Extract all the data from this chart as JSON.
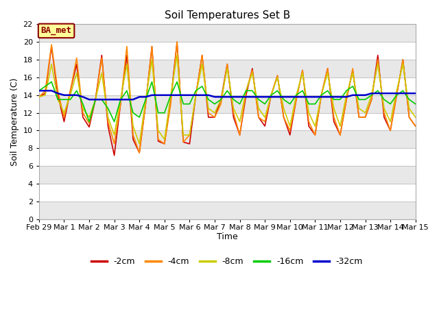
{
  "title": "Soil Temperatures Set B",
  "xlabel": "Time",
  "ylabel": "Soil Temperature (C)",
  "ylim": [
    0,
    22
  ],
  "yticks": [
    0,
    2,
    4,
    6,
    8,
    10,
    12,
    14,
    16,
    18,
    20,
    22
  ],
  "fig_bg_color": "#ffffff",
  "plot_bg_color": "#ffffff",
  "annotation_text": "BA_met",
  "annotation_bg": "#ffff99",
  "annotation_border": "#8b0000",
  "annotation_text_color": "#8b0000",
  "x_labels": [
    "Feb 29",
    "Mar 1",
    "Mar 2",
    "Mar 3",
    "Mar 4",
    "Mar 5",
    "Mar 6",
    "Mar 7",
    "Mar 8",
    "Mar 9",
    "Mar 10",
    "Mar 11",
    "Mar 12",
    "Mar 13",
    "Mar 14",
    "Mar 15"
  ],
  "legend_colors": [
    "#cc0000",
    "#ff8800",
    "#cccc00",
    "#00cc00",
    "#0000cc"
  ],
  "legend_labels": [
    "-2cm",
    "-4cm",
    "-8cm",
    "-16cm",
    "-32cm"
  ],
  "grid_stripe_color": "#d8d8d8",
  "grid_line_color": "#c8c8c8",
  "series": {
    "depth_2cm": {
      "color": "#cc0000",
      "lw": 1.2
    },
    "depth_4cm": {
      "color": "#ff8800",
      "lw": 1.2
    },
    "depth_8cm": {
      "color": "#cccc00",
      "lw": 1.2
    },
    "depth_16cm": {
      "color": "#00cc00",
      "lw": 1.2
    },
    "depth_32cm": {
      "color": "#0000cc",
      "lw": 1.8
    }
  },
  "x_2cm": [
    0,
    0.25,
    0.5,
    0.75,
    1.0,
    1.25,
    1.5,
    1.75,
    2.0,
    2.25,
    2.5,
    2.75,
    3.0,
    3.25,
    3.5,
    3.75,
    4.0,
    4.25,
    4.5,
    4.75,
    5.0,
    5.25,
    5.5,
    5.75,
    6.0,
    6.25,
    6.5,
    6.75,
    7.0,
    7.25,
    7.5,
    7.75,
    8.0,
    8.25,
    8.5,
    8.75,
    9.0,
    9.25,
    9.5,
    9.75,
    10.0,
    10.25,
    10.5,
    10.75,
    11.0,
    11.25,
    11.5,
    11.75,
    12.0,
    12.25,
    12.5,
    12.75,
    13.0,
    13.25,
    13.5,
    13.75,
    14.0,
    14.25,
    14.5,
    14.75,
    15.0
  ],
  "y_2cm": [
    13.8,
    14.2,
    19.5,
    14.0,
    11.0,
    14.5,
    17.5,
    11.5,
    10.4,
    13.5,
    18.5,
    10.5,
    7.2,
    13.0,
    18.5,
    9.0,
    7.5,
    13.0,
    19.5,
    8.8,
    8.5,
    13.5,
    20.0,
    8.7,
    8.5,
    14.0,
    18.5,
    11.5,
    11.5,
    13.5,
    17.5,
    11.5,
    9.5,
    14.0,
    17.0,
    11.5,
    10.5,
    14.0,
    16.2,
    11.5,
    9.5,
    13.5,
    16.8,
    10.5,
    9.5,
    14.0,
    17.0,
    11.0,
    9.5,
    13.5,
    16.8,
    11.5,
    11.5,
    13.5,
    18.5,
    11.5,
    10.0,
    14.0,
    18.0,
    11.5,
    10.5
  ],
  "x_4cm": [
    0,
    0.25,
    0.5,
    0.75,
    1.0,
    1.25,
    1.5,
    1.75,
    2.0,
    2.25,
    2.5,
    2.75,
    3.0,
    3.25,
    3.5,
    3.75,
    4.0,
    4.25,
    4.5,
    4.75,
    5.0,
    5.25,
    5.5,
    5.75,
    6.0,
    6.25,
    6.5,
    6.75,
    7.0,
    7.25,
    7.5,
    7.75,
    8.0,
    8.25,
    8.5,
    8.75,
    9.0,
    9.25,
    9.5,
    9.75,
    10.0,
    10.25,
    10.5,
    10.75,
    11.0,
    11.25,
    11.5,
    11.75,
    12.0,
    12.25,
    12.5,
    12.75,
    13.0,
    13.25,
    13.5,
    13.75,
    14.0,
    14.25,
    14.5,
    14.75,
    15.0
  ],
  "y_4cm": [
    13.8,
    14.5,
    19.7,
    14.5,
    11.5,
    14.5,
    18.2,
    12.0,
    10.8,
    13.5,
    18.2,
    11.0,
    8.5,
    13.0,
    19.5,
    9.5,
    7.5,
    13.0,
    19.5,
    9.0,
    8.5,
    13.0,
    20.0,
    8.7,
    9.5,
    14.0,
    18.5,
    12.0,
    11.5,
    13.0,
    17.5,
    12.0,
    9.5,
    14.5,
    16.8,
    11.5,
    11.0,
    14.0,
    16.2,
    11.5,
    10.0,
    13.5,
    16.8,
    11.0,
    9.5,
    14.0,
    17.0,
    11.5,
    9.5,
    13.5,
    17.0,
    11.5,
    11.5,
    13.5,
    18.0,
    12.0,
    10.0,
    14.0,
    18.0,
    11.5,
    10.5
  ],
  "x_8cm": [
    0,
    0.25,
    0.5,
    0.75,
    1.0,
    1.25,
    1.5,
    1.75,
    2.0,
    2.25,
    2.5,
    2.75,
    3.0,
    3.25,
    3.5,
    3.75,
    4.0,
    4.25,
    4.5,
    4.75,
    5.0,
    5.25,
    5.5,
    5.75,
    6.0,
    6.25,
    6.5,
    6.75,
    7.0,
    7.25,
    7.5,
    7.75,
    8.0,
    8.25,
    8.5,
    8.75,
    9.0,
    9.25,
    9.5,
    9.75,
    10.0,
    10.25,
    10.5,
    10.75,
    11.0,
    11.25,
    11.5,
    11.75,
    12.0,
    12.25,
    12.5,
    12.75,
    13.0,
    13.25,
    13.5,
    13.75,
    14.0,
    14.25,
    14.5,
    14.75,
    15.0
  ],
  "y_8cm": [
    13.8,
    14.0,
    17.5,
    13.5,
    12.0,
    14.0,
    16.5,
    12.5,
    11.5,
    13.5,
    16.5,
    11.5,
    9.5,
    13.5,
    17.5,
    10.5,
    8.5,
    13.5,
    18.0,
    10.0,
    9.0,
    14.0,
    18.5,
    9.5,
    9.5,
    14.0,
    17.5,
    12.5,
    12.0,
    13.5,
    17.0,
    12.5,
    11.0,
    14.5,
    16.5,
    12.5,
    11.5,
    14.0,
    16.0,
    12.5,
    10.5,
    14.0,
    16.5,
    12.0,
    10.5,
    14.0,
    16.5,
    12.5,
    10.5,
    14.0,
    16.5,
    12.5,
    12.0,
    14.0,
    17.5,
    12.5,
    11.0,
    14.5,
    17.5,
    12.5,
    11.5
  ],
  "x_16cm": [
    0,
    0.25,
    0.5,
    0.75,
    1.0,
    1.25,
    1.5,
    1.75,
    2.0,
    2.25,
    2.5,
    2.75,
    3.0,
    3.25,
    3.5,
    3.75,
    4.0,
    4.25,
    4.5,
    4.75,
    5.0,
    5.25,
    5.5,
    5.75,
    6.0,
    6.25,
    6.5,
    6.75,
    7.0,
    7.25,
    7.5,
    7.75,
    8.0,
    8.25,
    8.5,
    8.75,
    9.0,
    9.25,
    9.5,
    9.75,
    10.0,
    10.25,
    10.5,
    10.75,
    11.0,
    11.25,
    11.5,
    11.75,
    12.0,
    12.25,
    12.5,
    12.75,
    13.0,
    13.25,
    13.5,
    13.75,
    14.0,
    14.25,
    14.5,
    14.75,
    15.0
  ],
  "y_16cm": [
    14.5,
    15.0,
    15.5,
    13.5,
    13.5,
    13.5,
    14.5,
    13.0,
    11.0,
    13.5,
    13.5,
    12.5,
    11.0,
    13.5,
    14.5,
    12.0,
    11.5,
    13.5,
    15.5,
    12.0,
    12.0,
    14.0,
    15.5,
    13.0,
    13.0,
    14.5,
    15.0,
    13.5,
    13.0,
    13.5,
    14.5,
    13.5,
    13.0,
    14.5,
    14.5,
    13.5,
    13.0,
    14.0,
    14.5,
    13.5,
    13.0,
    14.0,
    14.5,
    13.0,
    13.0,
    14.0,
    14.5,
    13.5,
    13.5,
    14.5,
    15.0,
    13.5,
    13.5,
    14.0,
    14.5,
    13.5,
    13.0,
    14.0,
    14.5,
    13.5,
    13.0
  ],
  "x_32cm": [
    0,
    0.25,
    0.5,
    0.75,
    1.0,
    1.25,
    1.5,
    1.75,
    2.0,
    2.25,
    2.5,
    2.75,
    3.0,
    3.25,
    3.5,
    3.75,
    4.0,
    4.25,
    4.5,
    4.75,
    5.0,
    5.25,
    5.5,
    5.75,
    6.0,
    6.25,
    6.5,
    6.75,
    7.0,
    7.25,
    7.5,
    7.75,
    8.0,
    8.25,
    8.5,
    8.75,
    9.0,
    9.25,
    9.5,
    9.75,
    10.0,
    10.25,
    10.5,
    10.75,
    11.0,
    11.25,
    11.5,
    11.75,
    12.0,
    12.25,
    12.5,
    12.75,
    13.0,
    13.25,
    13.5,
    13.75,
    14.0,
    14.25,
    14.5,
    14.75,
    15.0
  ],
  "y_32cm": [
    14.5,
    14.5,
    14.5,
    14.2,
    14.0,
    14.0,
    14.0,
    13.8,
    13.5,
    13.5,
    13.5,
    13.5,
    13.5,
    13.5,
    13.5,
    13.5,
    13.8,
    13.8,
    14.0,
    14.0,
    14.0,
    14.0,
    14.0,
    14.0,
    14.0,
    14.0,
    14.0,
    14.0,
    13.8,
    13.8,
    13.8,
    13.8,
    13.8,
    13.8,
    13.8,
    13.8,
    13.8,
    13.8,
    13.8,
    13.8,
    13.8,
    13.8,
    13.8,
    13.8,
    13.8,
    13.8,
    13.8,
    13.8,
    13.8,
    13.8,
    14.0,
    14.0,
    14.0,
    14.2,
    14.2,
    14.2,
    14.2,
    14.2,
    14.2,
    14.2,
    14.2
  ]
}
